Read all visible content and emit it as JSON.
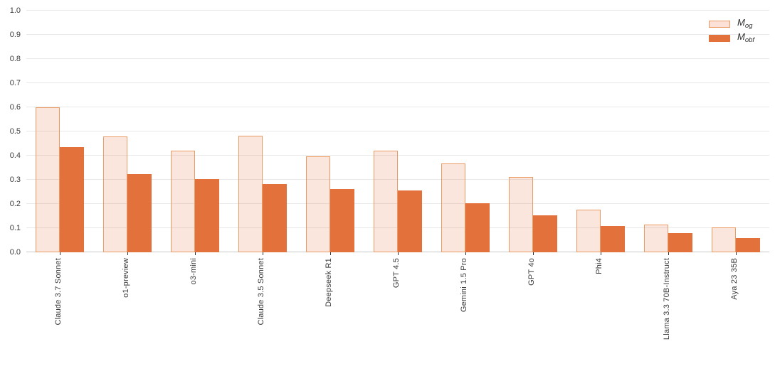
{
  "chart_data": {
    "type": "bar",
    "title": "",
    "xlabel": "",
    "ylabel": "",
    "categories": [
      "Claude 3.7 Sonnet",
      "o1-preview",
      "o3-mini",
      "Claude 3.5 Sonnet",
      "Deepseek R1",
      "GPT 4.5",
      "Gemini 1.5 Pro",
      "GPT 4o",
      "Phi4",
      "Llama 3.3 70B-Instruct",
      "Aya 23 35B"
    ],
    "series": [
      {
        "name": "M_og",
        "values": [
          0.6,
          0.478,
          0.42,
          0.482,
          0.396,
          0.419,
          0.368,
          0.312,
          0.177,
          0.113,
          0.103
        ]
      },
      {
        "name": "M_obf",
        "values": [
          0.435,
          0.322,
          0.303,
          0.281,
          0.262,
          0.254,
          0.203,
          0.152,
          0.108,
          0.08,
          0.057
        ]
      }
    ],
    "ylim": [
      0.0,
      1.0
    ],
    "yticks": [
      0.0,
      0.1,
      0.2,
      0.3,
      0.4,
      0.5,
      0.6,
      0.7,
      0.8,
      0.9,
      1.0
    ],
    "grid": true,
    "legend_position": "top-right",
    "colors": {
      "og_fill": "#fbe1d8",
      "og_border": "#ea9a63",
      "obf_fill": "#e2713b",
      "gridline": "#e9e9e9",
      "axis_line": "#c9c9c9",
      "text": "#3b3b3b"
    }
  },
  "legend": {
    "items": [
      {
        "main": "M",
        "sub": "og"
      },
      {
        "main": "M",
        "sub": "obf"
      }
    ]
  }
}
